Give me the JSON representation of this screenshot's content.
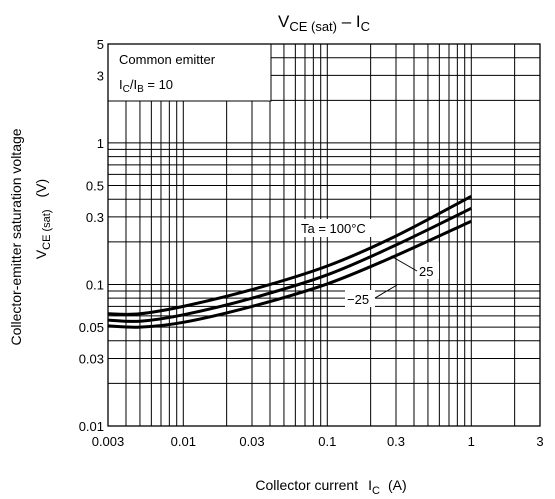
{
  "chart_data": {
    "type": "line",
    "title": {
      "main": "V",
      "main_sub": "CE (sat)",
      "sep": " – ",
      "tail": "I",
      "tail_sub": "C"
    },
    "xlabel": {
      "text": "Collector current",
      "sym": "I",
      "sym_sub": "C",
      "unit": "(A)"
    },
    "ylabel": {
      "line1": "Collector-emitter saturation voltage",
      "unit": "(V)",
      "sym": "V",
      "sym_sub": "CE (sat)"
    },
    "x_scale": "log",
    "y_scale": "log",
    "xlim": [
      0.003,
      3
    ],
    "ylim": [
      0.01,
      5
    ],
    "grid": true,
    "x_ticks": [
      {
        "v": 0.003,
        "label": "0.003"
      },
      {
        "v": 0.01,
        "label": "0.01"
      },
      {
        "v": 0.03,
        "label": "0.03"
      },
      {
        "v": 0.1,
        "label": "0.1"
      },
      {
        "v": 0.3,
        "label": "0.3"
      },
      {
        "v": 1,
        "label": "1"
      },
      {
        "v": 3,
        "label": "3"
      }
    ],
    "y_ticks": [
      {
        "v": 0.01,
        "label": "0.01"
      },
      {
        "v": 0.03,
        "label": "0.03"
      },
      {
        "v": 0.05,
        "label": "0.05"
      },
      {
        "v": 0.1,
        "label": "0.1"
      },
      {
        "v": 0.3,
        "label": "0.3"
      },
      {
        "v": 0.5,
        "label": "0.5"
      },
      {
        "v": 1,
        "label": "1"
      },
      {
        "v": 3,
        "label": "3"
      },
      {
        "v": 5,
        "label": "5"
      }
    ],
    "conditions": {
      "line1": "Common emitter",
      "ratio_a": "I",
      "ratio_a_sub": "C",
      "ratio_sep": "/I",
      "ratio_b_sub": "B",
      "ratio_val": " = 10"
    },
    "series": [
      {
        "name": "Ta = 100°C",
        "x": [
          0.003,
          0.005,
          0.01,
          0.03,
          0.1,
          0.3,
          1
        ],
        "y": [
          0.062,
          0.062,
          0.07,
          0.092,
          0.135,
          0.22,
          0.42
        ]
      },
      {
        "name": "25",
        "x": [
          0.003,
          0.005,
          0.01,
          0.03,
          0.1,
          0.3,
          1
        ],
        "y": [
          0.056,
          0.055,
          0.061,
          0.08,
          0.117,
          0.19,
          0.345
        ]
      },
      {
        "name": "−25",
        "x": [
          0.003,
          0.005,
          0.01,
          0.03,
          0.1,
          0.3,
          1
        ],
        "y": [
          0.051,
          0.05,
          0.054,
          0.07,
          0.101,
          0.16,
          0.28
        ]
      }
    ]
  }
}
